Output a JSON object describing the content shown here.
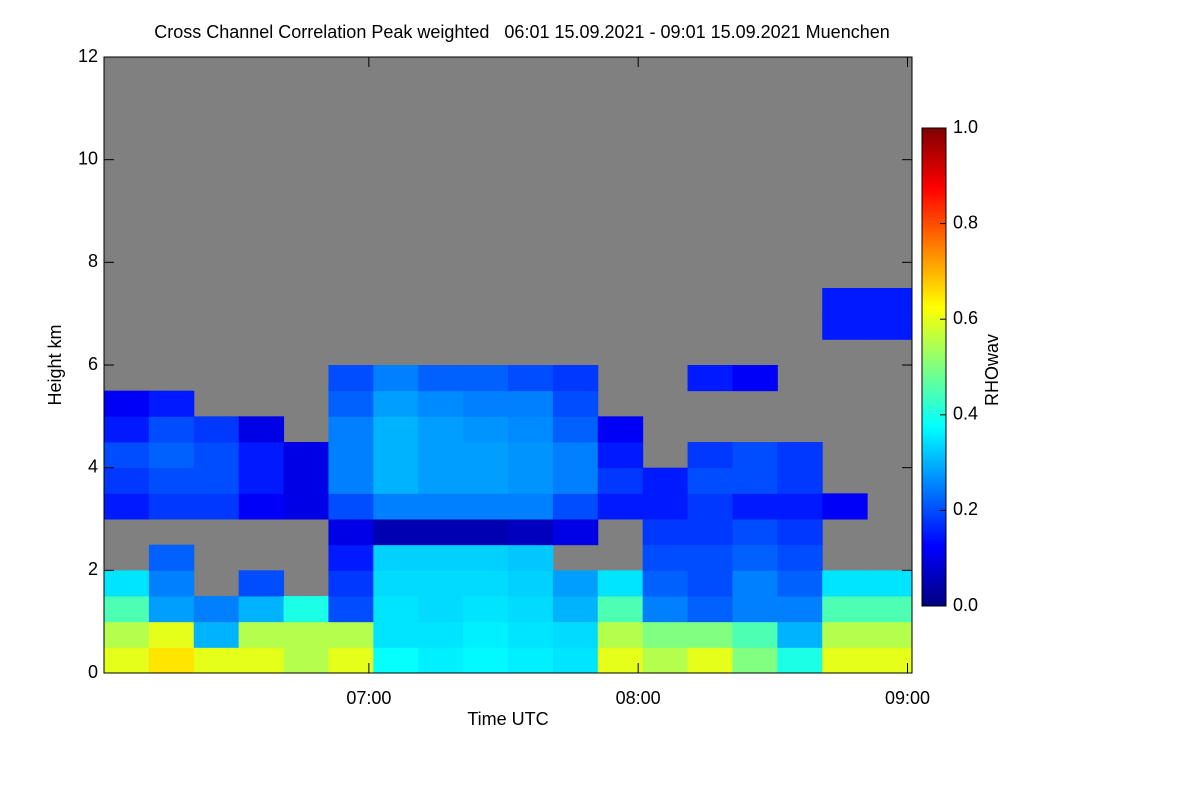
{
  "chart_data": {
    "type": "heatmap",
    "title": "Cross Channel Correlation Peak weighted   06:01 15.09.2021 - 09:01 15.09.2021 Muenchen",
    "xlabel": "Time UTC",
    "ylabel": "Height km",
    "colorbar_label": "RHOwav",
    "colormap": "jet",
    "missing_color": "#808080",
    "xlim": [
      361,
      541
    ],
    "xticks": [
      {
        "value": 420,
        "label": "07:00"
      },
      {
        "value": 480,
        "label": "08:00"
      },
      {
        "value": 540,
        "label": "09:00"
      }
    ],
    "ylim": [
      0,
      12
    ],
    "yticks": [
      0,
      2,
      4,
      6,
      8,
      10,
      12
    ],
    "zlim": [
      0,
      1
    ],
    "zticks": [
      {
        "value": 0,
        "label": "0.0"
      },
      {
        "value": 0.2,
        "label": "0.2"
      },
      {
        "value": 0.4,
        "label": "0.4"
      },
      {
        "value": 0.6,
        "label": "0.6"
      },
      {
        "value": 0.8,
        "label": "0.8"
      },
      {
        "value": 1,
        "label": "1.0"
      }
    ],
    "x": [
      366,
      376,
      386,
      396,
      406,
      416,
      426,
      436,
      446,
      456,
      466,
      476,
      486,
      496,
      506,
      516,
      526,
      536
    ],
    "y": [
      0.25,
      0.75,
      1.25,
      1.75,
      2.25,
      2.75,
      3.25,
      3.75,
      4.25,
      4.75,
      5.25,
      5.75,
      6.25,
      6.75,
      7.25,
      7.75,
      8.25,
      8.75,
      9.25,
      9.75,
      10.25,
      10.75,
      11.25,
      11.75
    ],
    "z": [
      [
        0.6,
        0.65,
        0.6,
        0.6,
        0.55,
        0.6,
        0.38,
        0.36,
        0.37,
        0.36,
        0.35,
        0.6,
        0.55,
        0.6,
        0.5,
        0.4,
        0.6,
        0.6
      ],
      [
        0.55,
        0.6,
        0.3,
        0.55,
        0.55,
        0.55,
        0.35,
        0.35,
        0.36,
        0.35,
        0.34,
        0.55,
        0.5,
        0.5,
        0.45,
        0.3,
        0.55,
        0.55
      ],
      [
        0.45,
        0.28,
        0.25,
        0.3,
        0.4,
        0.2,
        0.35,
        0.34,
        0.35,
        0.34,
        0.3,
        0.45,
        0.25,
        0.22,
        0.25,
        0.25,
        0.45,
        0.45
      ],
      [
        0.35,
        0.25,
        null,
        0.2,
        null,
        0.18,
        0.34,
        0.34,
        0.34,
        0.33,
        0.28,
        0.35,
        0.22,
        0.2,
        0.25,
        0.22,
        0.35,
        0.35
      ],
      [
        null,
        0.22,
        null,
        null,
        null,
        0.15,
        0.33,
        0.33,
        0.33,
        0.32,
        null,
        null,
        0.2,
        0.2,
        0.22,
        0.2,
        null,
        null
      ],
      [
        null,
        null,
        null,
        null,
        null,
        0.1,
        0.05,
        0.05,
        0.05,
        0.06,
        0.1,
        null,
        0.18,
        0.18,
        0.2,
        0.18,
        null,
        null
      ],
      [
        0.15,
        0.18,
        0.18,
        0.12,
        0.1,
        0.2,
        0.25,
        0.25,
        0.25,
        0.25,
        0.2,
        0.15,
        0.15,
        0.18,
        0.15,
        0.15,
        0.12,
        null
      ],
      [
        0.18,
        0.2,
        0.2,
        0.15,
        0.1,
        0.25,
        0.3,
        0.28,
        0.28,
        0.27,
        0.25,
        0.18,
        0.15,
        0.2,
        0.2,
        0.18,
        null,
        null
      ],
      [
        0.2,
        0.22,
        0.2,
        0.15,
        0.1,
        0.25,
        0.3,
        0.28,
        0.28,
        0.27,
        0.25,
        0.15,
        null,
        0.18,
        0.2,
        0.18,
        null,
        null
      ],
      [
        0.15,
        0.2,
        0.18,
        0.1,
        null,
        0.25,
        0.3,
        0.28,
        0.27,
        0.26,
        0.22,
        0.12,
        null,
        null,
        null,
        null,
        null,
        null
      ],
      [
        0.12,
        0.15,
        null,
        null,
        null,
        0.22,
        0.28,
        0.26,
        0.25,
        0.25,
        0.2,
        null,
        null,
        null,
        null,
        null,
        null,
        null
      ],
      [
        null,
        null,
        null,
        null,
        null,
        0.2,
        0.25,
        0.22,
        0.22,
        0.2,
        0.18,
        null,
        null,
        0.15,
        0.12,
        null,
        null,
        null
      ],
      [
        null,
        null,
        null,
        null,
        null,
        null,
        null,
        null,
        null,
        null,
        null,
        null,
        null,
        null,
        null,
        null,
        null,
        null
      ],
      [
        null,
        null,
        null,
        null,
        null,
        null,
        null,
        null,
        null,
        null,
        null,
        null,
        null,
        null,
        null,
        null,
        0.15,
        0.15
      ],
      [
        null,
        null,
        null,
        null,
        null,
        null,
        null,
        null,
        null,
        null,
        null,
        null,
        null,
        null,
        null,
        null,
        0.15,
        0.15
      ],
      [
        null,
        null,
        null,
        null,
        null,
        null,
        null,
        null,
        null,
        null,
        null,
        null,
        null,
        null,
        null,
        null,
        null,
        null
      ],
      [
        null,
        null,
        null,
        null,
        null,
        null,
        null,
        null,
        null,
        null,
        null,
        null,
        null,
        null,
        null,
        null,
        null,
        null
      ],
      [
        null,
        null,
        null,
        null,
        null,
        null,
        null,
        null,
        null,
        null,
        null,
        null,
        null,
        null,
        null,
        null,
        null,
        null
      ],
      [
        null,
        null,
        null,
        null,
        null,
        null,
        null,
        null,
        null,
        null,
        null,
        null,
        null,
        null,
        null,
        null,
        null,
        null
      ],
      [
        null,
        null,
        null,
        null,
        null,
        null,
        null,
        null,
        null,
        null,
        null,
        null,
        null,
        null,
        null,
        null,
        null,
        null
      ],
      [
        null,
        null,
        null,
        null,
        null,
        null,
        null,
        null,
        null,
        null,
        null,
        null,
        null,
        null,
        null,
        null,
        null,
        null
      ],
      [
        null,
        null,
        null,
        null,
        null,
        null,
        null,
        null,
        null,
        null,
        null,
        null,
        null,
        null,
        null,
        null,
        null,
        null
      ],
      [
        null,
        null,
        null,
        null,
        null,
        null,
        null,
        null,
        null,
        null,
        null,
        null,
        null,
        null,
        null,
        null,
        null,
        null
      ],
      [
        null,
        null,
        null,
        null,
        null,
        null,
        null,
        null,
        null,
        null,
        null,
        null,
        null,
        null,
        null,
        null,
        null,
        null
      ]
    ]
  }
}
